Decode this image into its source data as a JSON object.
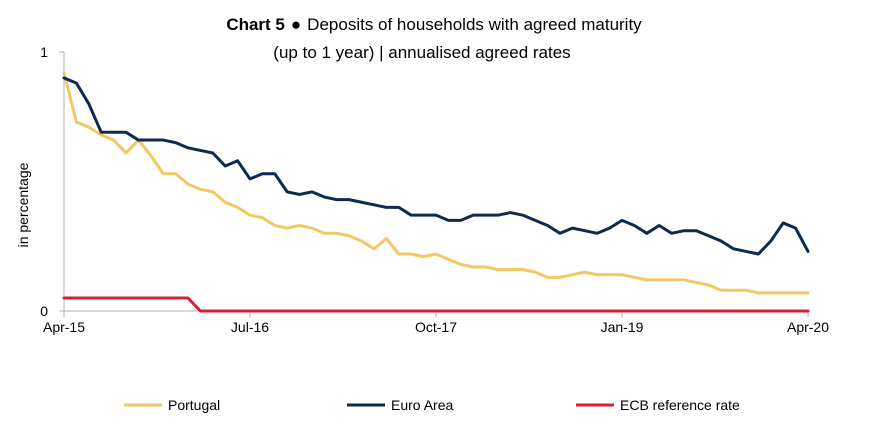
{
  "chart_data": {
    "type": "line",
    "title_prefix": "Chart 5",
    "title_bullet": "●",
    "title_line1": "Deposits of households with agreed maturity",
    "title_line2": "(up to 1 year) | annualised agreed rates",
    "ylabel": "in percentage",
    "xlabel": "",
    "ylim": [
      0,
      1
    ],
    "y_ticks": [
      "0",
      "1"
    ],
    "x_ticks": [
      {
        "label": "Apr-15",
        "index": 0
      },
      {
        "label": "Jul-16",
        "index": 15
      },
      {
        "label": "Oct-17",
        "index": 30
      },
      {
        "label": "Jan-19",
        "index": 45
      },
      {
        "label": "Apr-20",
        "index": 60
      }
    ],
    "x_range": [
      "Apr-15",
      "Apr-20"
    ],
    "grid": false,
    "legend_position": "bottom",
    "series": [
      {
        "name": "Portugal",
        "color": "#F2C864",
        "values": [
          0.92,
          0.73,
          0.71,
          0.68,
          0.66,
          0.61,
          0.66,
          0.6,
          0.53,
          0.53,
          0.49,
          0.47,
          0.46,
          0.42,
          0.4,
          0.37,
          0.36,
          0.33,
          0.32,
          0.33,
          0.32,
          0.3,
          0.3,
          0.29,
          0.27,
          0.24,
          0.28,
          0.22,
          0.22,
          0.21,
          0.22,
          0.2,
          0.18,
          0.17,
          0.17,
          0.16,
          0.16,
          0.16,
          0.15,
          0.13,
          0.13,
          0.14,
          0.15,
          0.14,
          0.14,
          0.14,
          0.13,
          0.12,
          0.12,
          0.12,
          0.12,
          0.11,
          0.1,
          0.08,
          0.08,
          0.08,
          0.07,
          0.07,
          0.07,
          0.07,
          0.07
        ]
      },
      {
        "name": "Euro Area",
        "color": "#0E2A4F",
        "values": [
          0.9,
          0.88,
          0.8,
          0.69,
          0.69,
          0.69,
          0.66,
          0.66,
          0.66,
          0.65,
          0.63,
          0.62,
          0.61,
          0.56,
          0.58,
          0.51,
          0.53,
          0.53,
          0.46,
          0.45,
          0.46,
          0.44,
          0.43,
          0.43,
          0.42,
          0.41,
          0.4,
          0.4,
          0.37,
          0.37,
          0.37,
          0.35,
          0.35,
          0.37,
          0.37,
          0.37,
          0.38,
          0.37,
          0.35,
          0.33,
          0.3,
          0.32,
          0.31,
          0.3,
          0.32,
          0.35,
          0.33,
          0.3,
          0.33,
          0.3,
          0.31,
          0.31,
          0.29,
          0.27,
          0.24,
          0.23,
          0.22,
          0.27,
          0.34,
          0.32,
          0.23
        ]
      },
      {
        "name": "ECB reference rate",
        "color": "#D6203B",
        "values": [
          0.05,
          0.05,
          0.05,
          0.05,
          0.05,
          0.05,
          0.05,
          0.05,
          0.05,
          0.05,
          0.05,
          0.0,
          0.0,
          0.0,
          0.0,
          0.0,
          0.0,
          0.0,
          0.0,
          0.0,
          0.0,
          0.0,
          0.0,
          0.0,
          0.0,
          0.0,
          0.0,
          0.0,
          0.0,
          0.0,
          0.0,
          0.0,
          0.0,
          0.0,
          0.0,
          0.0,
          0.0,
          0.0,
          0.0,
          0.0,
          0.0,
          0.0,
          0.0,
          0.0,
          0.0,
          0.0,
          0.0,
          0.0,
          0.0,
          0.0,
          0.0,
          0.0,
          0.0,
          0.0,
          0.0,
          0.0,
          0.0,
          0.0,
          0.0,
          0.0,
          0.0
        ]
      }
    ]
  }
}
